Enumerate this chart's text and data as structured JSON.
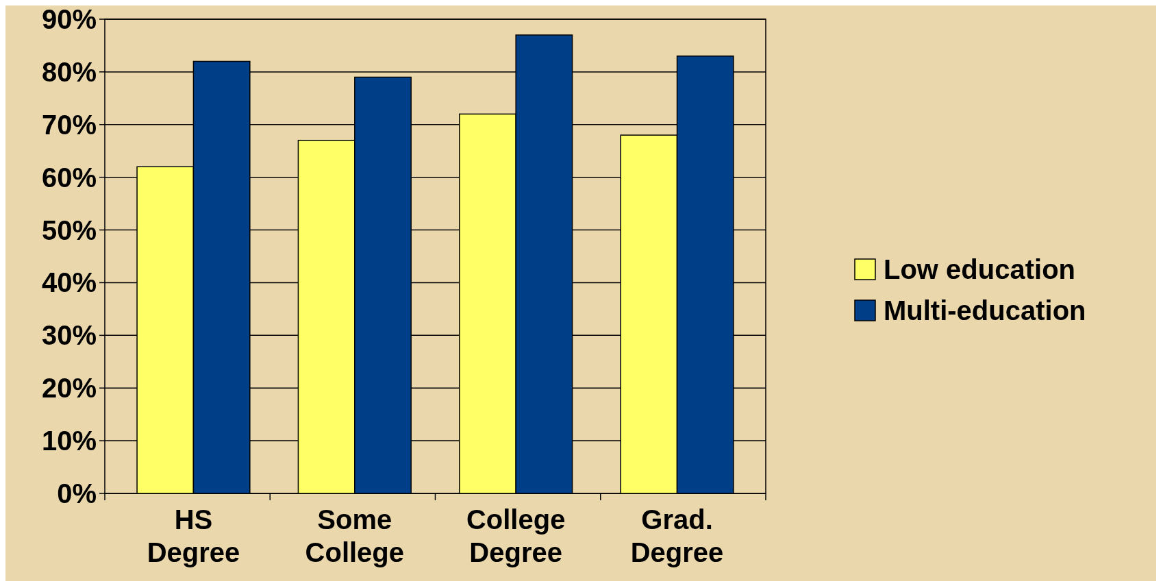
{
  "chart_data": {
    "type": "bar",
    "categories": [
      "HS\nDegree",
      "Some\nCollege",
      "College\nDegree",
      "Grad.\nDegree"
    ],
    "series": [
      {
        "name": "Low education",
        "color": "#ffff66",
        "values": [
          62,
          67,
          72,
          68
        ]
      },
      {
        "name": "Multi-education",
        "color": "#003f87",
        "values": [
          82,
          79,
          87,
          83
        ]
      }
    ],
    "ylim": [
      0,
      90
    ],
    "yticks": [
      {
        "value": 0,
        "label": "0%"
      },
      {
        "value": 10,
        "label": "10%"
      },
      {
        "value": 20,
        "label": "20%"
      },
      {
        "value": 30,
        "label": "30%"
      },
      {
        "value": 40,
        "label": "40%"
      },
      {
        "value": 50,
        "label": "50%"
      },
      {
        "value": 60,
        "label": "60%"
      },
      {
        "value": 70,
        "label": "70%"
      },
      {
        "value": 80,
        "label": "80%"
      },
      {
        "value": 90,
        "label": "90%"
      }
    ],
    "grid": "y",
    "legend": "right"
  }
}
